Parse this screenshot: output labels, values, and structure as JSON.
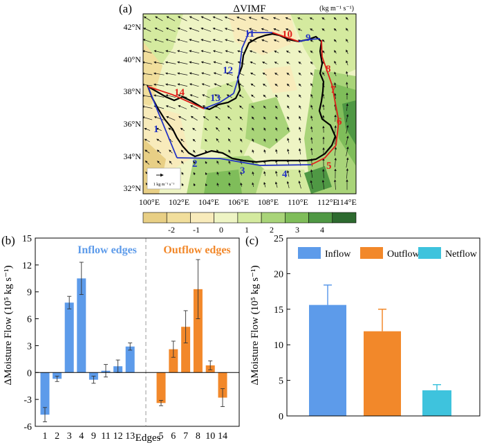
{
  "map_panel": {
    "panel_label": "(a)",
    "title": "ΔVIMF",
    "units": "(kg m⁻¹ s⁻¹)",
    "lat_ticks": [
      "42°N",
      "40°N",
      "38°N",
      "36°N",
      "34°N",
      "32°N"
    ],
    "lon_ticks": [
      "100°E",
      "102°E",
      "104°E",
      "106°E",
      "108°E",
      "110°E",
      "112°E",
      "114°E"
    ],
    "reference_vector": "1 kg m⁻¹ s⁻¹",
    "colorbar": {
      "labels": [
        "-2",
        "-1",
        "0",
        "1",
        "2",
        "3",
        "4"
      ],
      "colors": [
        "#e8cf85",
        "#f1de9c",
        "#f8ebbb",
        "#eef4c4",
        "#d4ea9f",
        "#a9d479",
        "#7fbd5a",
        "#4f9844",
        "#2d6a2f"
      ]
    },
    "inflow_edges": [
      "1",
      "2",
      "3",
      "4",
      "9",
      "11",
      "12",
      "13"
    ],
    "outflow_edges": [
      "5",
      "6",
      "7",
      "8",
      "10",
      "14"
    ],
    "inflow_color": "#2433c4",
    "outflow_color": "#e0201b"
  },
  "chart_data": [
    {
      "type": "bar",
      "panel_label": "(b)",
      "xlabel": "Edges",
      "ylabel": "ΔMoisture Flow (10⁵ kg s⁻¹)",
      "ylim": [
        -6,
        15
      ],
      "yticks": [
        "-6",
        "-3",
        "0",
        "3",
        "6",
        "9",
        "12",
        "15"
      ],
      "groups": [
        {
          "label": "Inflow edges",
          "color": "#5d9bea",
          "categories": [
            "1",
            "2",
            "3",
            "4",
            "9",
            "11",
            "12",
            "13"
          ],
          "values": [
            -4.7,
            -0.7,
            7.8,
            10.5,
            -0.8,
            0.2,
            0.7,
            2.9
          ],
          "errors": [
            0.8,
            0.3,
            0.7,
            1.8,
            0.4,
            0.7,
            0.7,
            0.4
          ]
        },
        {
          "label": "Outflow edges",
          "color": "#f2882a",
          "categories": [
            "5",
            "6",
            "7",
            "8",
            "10",
            "14"
          ],
          "values": [
            -3.4,
            2.6,
            5.1,
            9.3,
            0.8,
            -2.8
          ],
          "errors": [
            0.3,
            0.9,
            1.8,
            3.3,
            0.5,
            1.0
          ]
        }
      ]
    },
    {
      "type": "bar",
      "panel_label": "(c)",
      "xlabel": "",
      "ylabel": "ΔMoisture Flow (10⁵ kg s⁻¹)",
      "ylim": [
        0,
        25
      ],
      "yticks": [
        "0",
        "5",
        "10",
        "15",
        "20",
        "25"
      ],
      "legend": "top",
      "categories": [
        "Inflow",
        "Outflow",
        "Netflow"
      ],
      "colors": [
        "#5d9bea",
        "#f2882a",
        "#3ec3dd"
      ],
      "values": [
        15.6,
        11.9,
        3.6
      ],
      "errors": [
        2.8,
        3.1,
        0.8
      ]
    }
  ]
}
